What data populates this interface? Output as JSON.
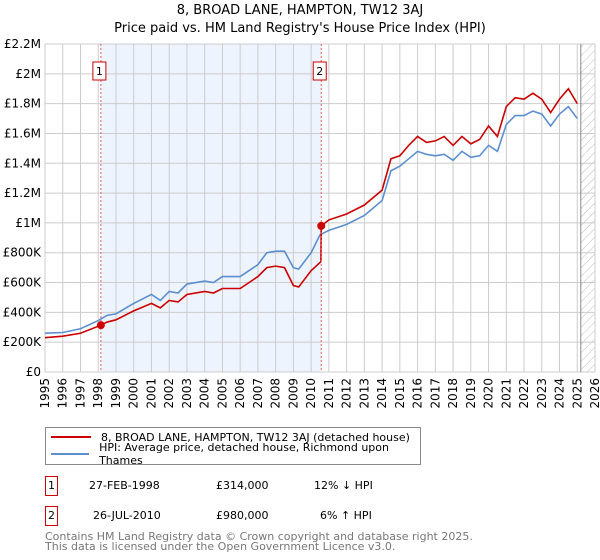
{
  "title": "8, BROAD LANE, HAMPTON, TW12 3AJ",
  "subtitle": "Price paid vs. HM Land Registry's House Price Index (HPI)",
  "chart_data": {
    "type": "line",
    "xlim": [
      1995,
      2026
    ],
    "ylim": [
      0,
      2200000
    ],
    "yticks": [
      {
        "v": 0,
        "label": "£0"
      },
      {
        "v": 200000,
        "label": "£200K"
      },
      {
        "v": 400000,
        "label": "£400K"
      },
      {
        "v": 600000,
        "label": "£600K"
      },
      {
        "v": 800000,
        "label": "£800K"
      },
      {
        "v": 1000000,
        "label": "£1M"
      },
      {
        "v": 1200000,
        "label": "£1.2M"
      },
      {
        "v": 1400000,
        "label": "£1.4M"
      },
      {
        "v": 1600000,
        "label": "£1.6M"
      },
      {
        "v": 1800000,
        "label": "£1.8M"
      },
      {
        "v": 2000000,
        "label": "£2M"
      },
      {
        "v": 2200000,
        "label": "£2.2M"
      }
    ],
    "xticks": [
      "1995",
      "1996",
      "1997",
      "1998",
      "1999",
      "2000",
      "2001",
      "2002",
      "2003",
      "2004",
      "2005",
      "2006",
      "2007",
      "2008",
      "2009",
      "2010",
      "2011",
      "2012",
      "2013",
      "2014",
      "2015",
      "2016",
      "2017",
      "2018",
      "2019",
      "2020",
      "2021",
      "2022",
      "2023",
      "2024",
      "2025",
      "2026"
    ],
    "shaded_range": [
      1998.15,
      2010.57
    ],
    "hatched_from": 2025.2,
    "series": [
      {
        "name": "8, BROAD LANE, HAMPTON, TW12 3AJ (detached house)",
        "color": "#cc0000",
        "x": [
          1995,
          1996,
          1997,
          1998.15,
          1998.5,
          1999,
          2000,
          2001,
          2001.5,
          2002,
          2002.5,
          2003,
          2004,
          2004.5,
          2005,
          2006,
          2007,
          2007.5,
          2008,
          2008.5,
          2009,
          2009.3,
          2010,
          2010.55,
          2010.57,
          2011,
          2012,
          2013,
          2014,
          2014.5,
          2015,
          2015.5,
          2016,
          2016.5,
          2017,
          2017.5,
          2018,
          2018.5,
          2019,
          2019.5,
          2020,
          2020.5,
          2021,
          2021.5,
          2022,
          2022.5,
          2023,
          2023.5,
          2024,
          2024.5,
          2025
        ],
        "y": [
          230000,
          240000,
          260000,
          314000,
          335000,
          350000,
          410000,
          460000,
          430000,
          480000,
          470000,
          520000,
          540000,
          530000,
          560000,
          560000,
          640000,
          700000,
          710000,
          700000,
          580000,
          570000,
          680000,
          740000,
          980000,
          1020000,
          1060000,
          1120000,
          1220000,
          1430000,
          1450000,
          1520000,
          1580000,
          1540000,
          1550000,
          1580000,
          1520000,
          1580000,
          1530000,
          1560000,
          1650000,
          1580000,
          1780000,
          1840000,
          1830000,
          1870000,
          1830000,
          1740000,
          1830000,
          1900000,
          1800000
        ]
      },
      {
        "name": "HPI: Average price, detached house, Richmond upon Thames",
        "color": "#5b8fd0",
        "x": [
          1995,
          1996,
          1997,
          1998,
          1998.5,
          1999,
          2000,
          2001,
          2001.5,
          2002,
          2002.5,
          2003,
          2004,
          2004.5,
          2005,
          2006,
          2007,
          2007.5,
          2008,
          2008.5,
          2009,
          2009.3,
          2010,
          2010.5,
          2011,
          2012,
          2013,
          2014,
          2014.5,
          2015,
          2015.5,
          2016,
          2016.5,
          2017,
          2017.5,
          2018,
          2018.5,
          2019,
          2019.5,
          2020,
          2020.5,
          2021,
          2021.5,
          2022,
          2022.5,
          2023,
          2023.5,
          2024,
          2024.5,
          2025
        ],
        "y": [
          260000,
          265000,
          290000,
          345000,
          380000,
          390000,
          460000,
          520000,
          480000,
          540000,
          530000,
          590000,
          610000,
          600000,
          640000,
          640000,
          720000,
          800000,
          810000,
          810000,
          700000,
          690000,
          800000,
          920000,
          950000,
          990000,
          1050000,
          1150000,
          1350000,
          1380000,
          1430000,
          1480000,
          1460000,
          1450000,
          1460000,
          1420000,
          1480000,
          1440000,
          1450000,
          1520000,
          1480000,
          1660000,
          1720000,
          1720000,
          1750000,
          1730000,
          1650000,
          1730000,
          1780000,
          1700000
        ]
      }
    ],
    "sales": [
      {
        "label": "1",
        "x": 1998.15,
        "y": 314000
      },
      {
        "label": "2",
        "x": 2010.57,
        "y": 980000
      }
    ]
  },
  "legend": [
    "8, BROAD LANE, HAMPTON, TW12 3AJ (detached house)",
    "HPI: Average price, detached house, Richmond upon Thames"
  ],
  "transactions": [
    {
      "num": "1",
      "date": "27-FEB-1998",
      "price": "£314,000",
      "hpi": "12% ↓ HPI"
    },
    {
      "num": "2",
      "date": "26-JUL-2010",
      "price": "£980,000",
      "hpi": "6% ↑ HPI"
    }
  ],
  "footer": [
    "Contains HM Land Registry data © Crown copyright and database right 2025.",
    "This data is licensed under the Open Government Licence v3.0."
  ]
}
